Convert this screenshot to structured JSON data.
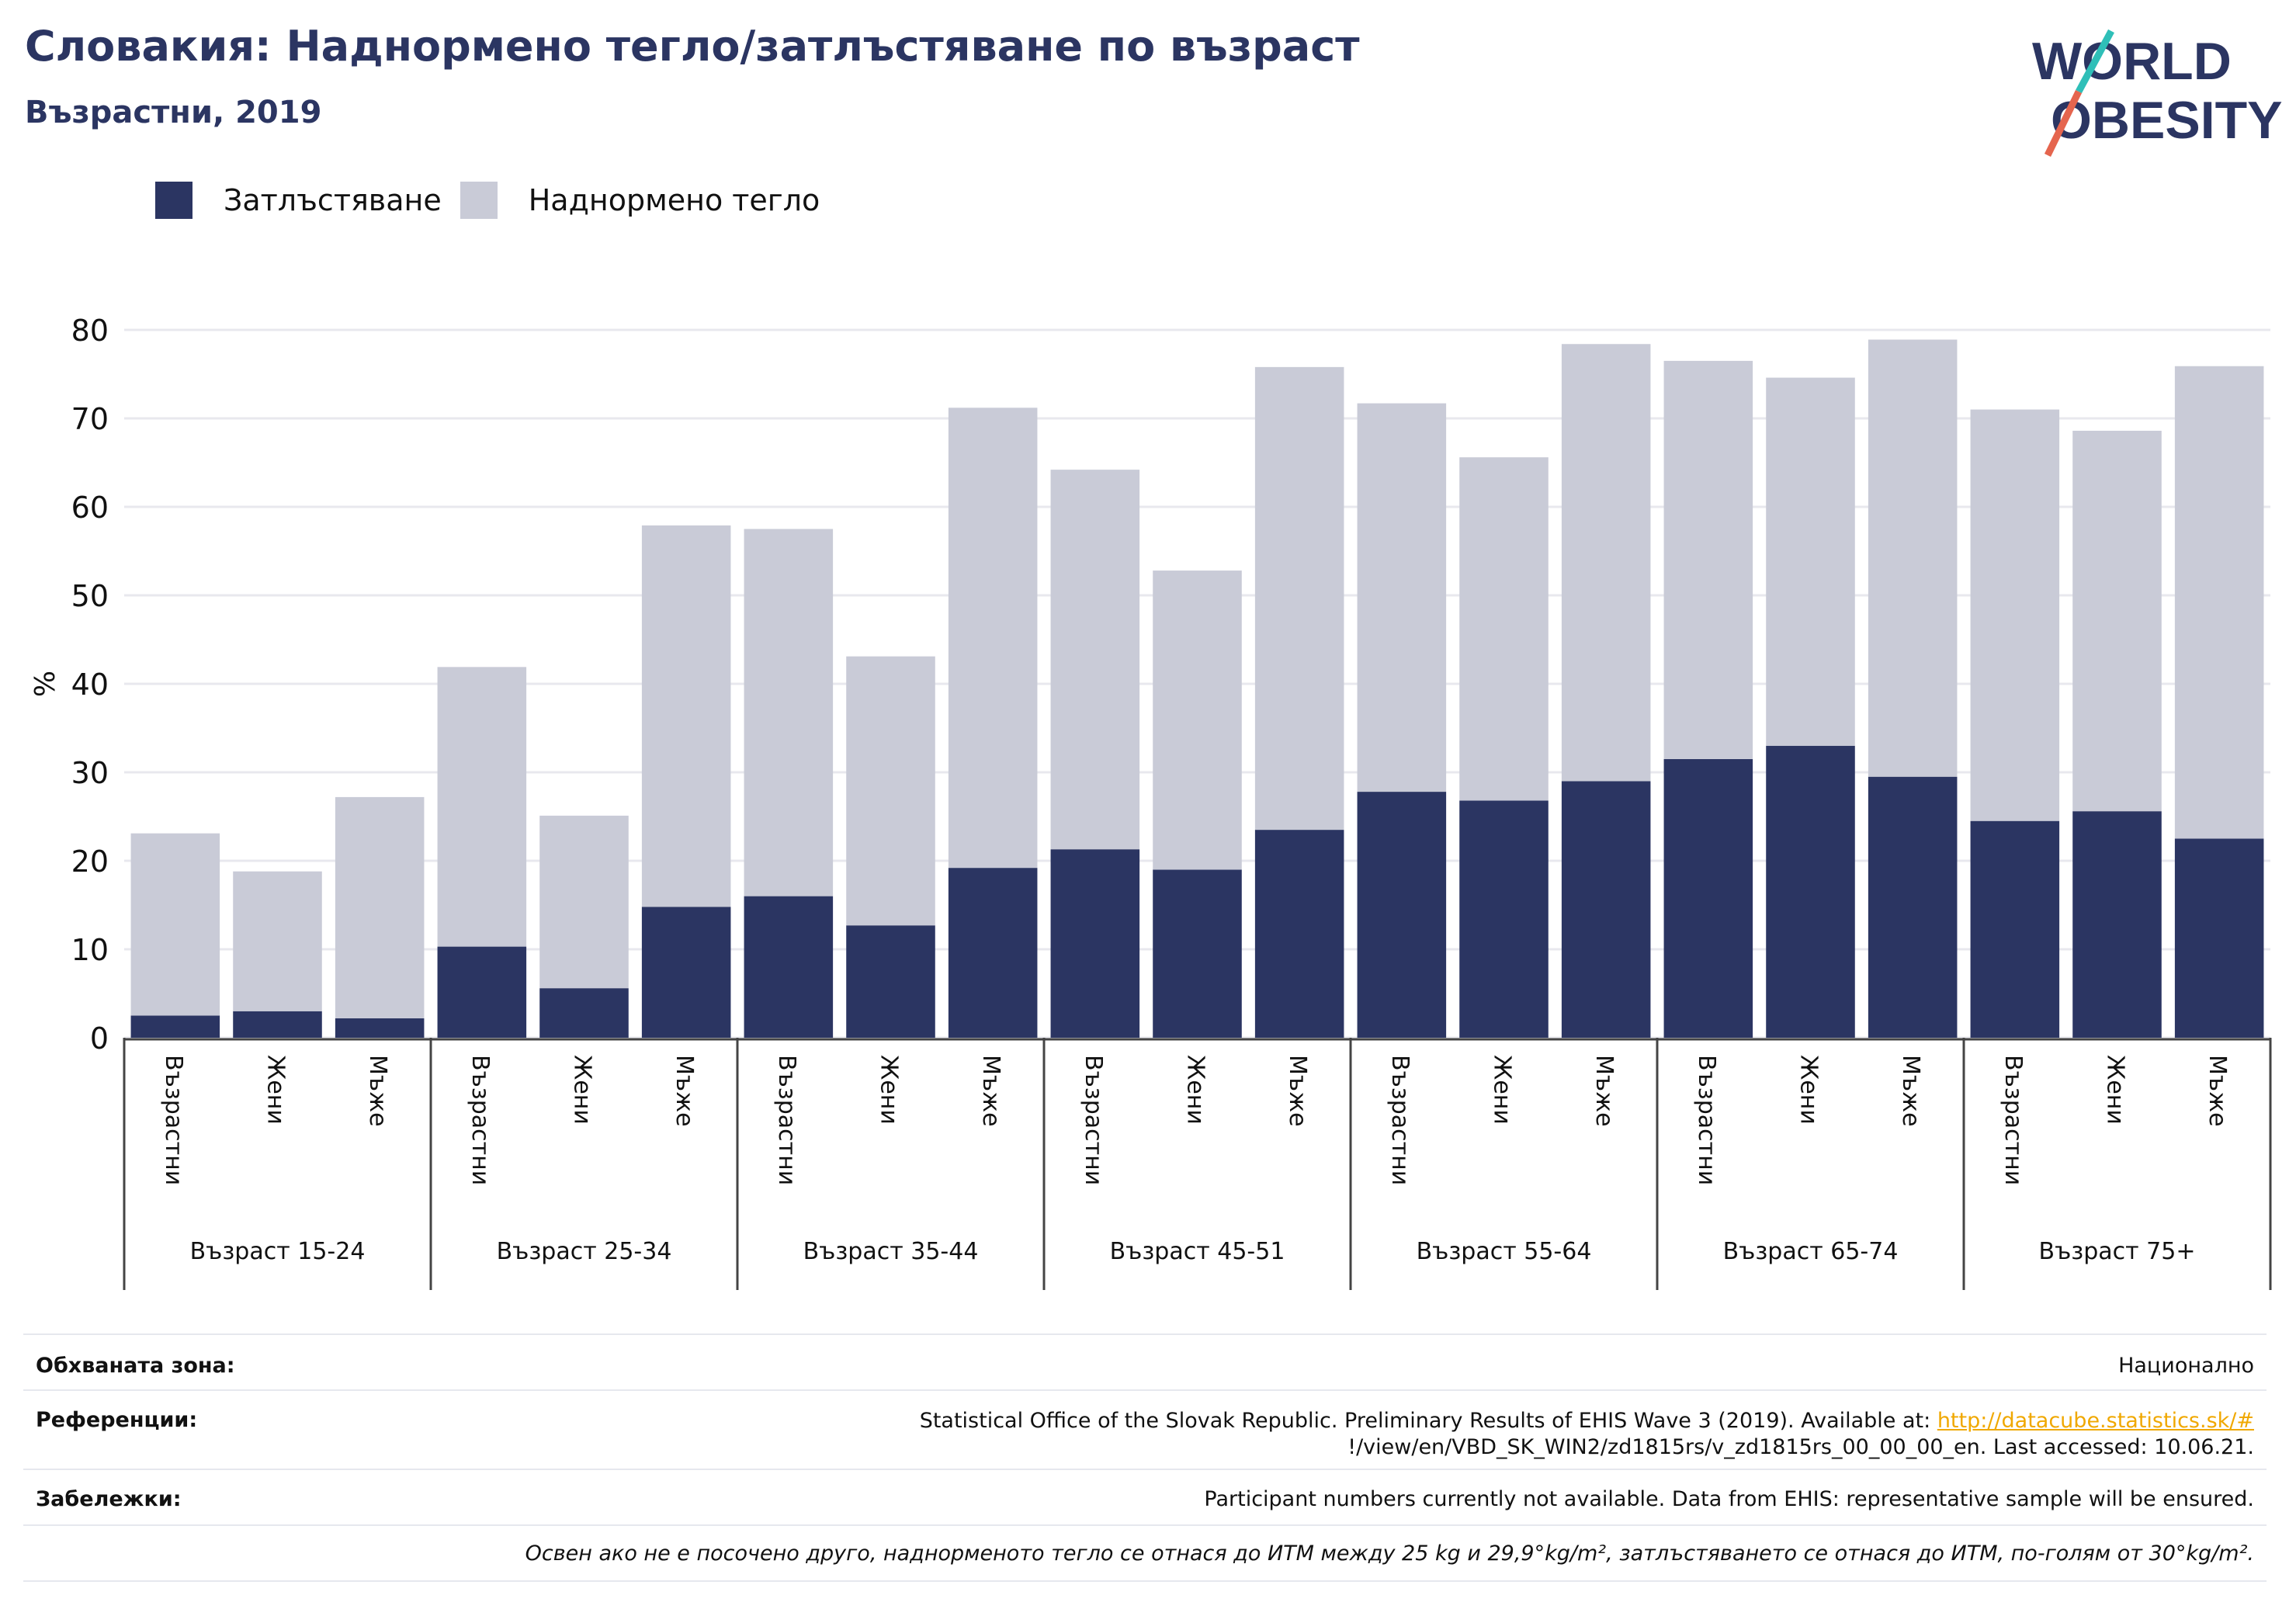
{
  "header": {
    "title": "Словакия: Наднормено тегло/затлъстяване по възраст",
    "subtitle": "Възрастни, 2019"
  },
  "logo": {
    "line1": "WORLD",
    "line2": "OBESITY"
  },
  "colors": {
    "obesity": "#2b3562",
    "overweight": "#c9cbd7",
    "title": "#2b3562",
    "link": "#f0a800"
  },
  "chart_data": {
    "type": "bar",
    "stacked": true,
    "ylabel": "%",
    "ylim": [
      0,
      80
    ],
    "yticks": [
      0,
      10,
      20,
      30,
      40,
      50,
      60,
      70,
      80
    ],
    "grid": true,
    "legend_position": "top-left",
    "groups": [
      "Възраст 15-24",
      "Възраст 25-34",
      "Възраст 35-44",
      "Възраст 45-51",
      "Възраст 55-64",
      "Възраст 65-74",
      "Възраст 75+"
    ],
    "subcategories": [
      "Възрастни",
      "Жени",
      "Мъже"
    ],
    "series": [
      {
        "name": "Затлъстяване",
        "values": [
          2.5,
          3.0,
          2.2,
          10.3,
          5.6,
          14.8,
          16.0,
          12.7,
          19.2,
          21.3,
          19.0,
          23.5,
          27.8,
          26.8,
          29.0,
          31.5,
          33.0,
          29.5,
          24.5,
          25.6,
          22.5
        ]
      },
      {
        "name": "Наднормено тегло",
        "values": [
          20.6,
          15.8,
          25.0,
          31.6,
          19.5,
          43.1,
          41.5,
          30.4,
          52.0,
          42.9,
          33.8,
          52.3,
          43.9,
          38.8,
          49.4,
          45.0,
          41.6,
          49.4,
          46.5,
          43.0,
          53.4
        ]
      }
    ]
  },
  "footer": {
    "coverage_label": "Обхваната зона:",
    "coverage_value": "Национално",
    "references_label": "Референции:",
    "references_text": "Statistical Office of the Slovak Republic. Preliminary Results of EHIS Wave 3 (2019). Available at: ",
    "references_link": "http://datacube.statistics.sk/#",
    "references_text2": "!/view/en/VBD_SK_WIN2/zd1815rs/v_zd1815rs_00_00_00_en. Last accessed: 10.06.21.",
    "notes_label": "Забележки:",
    "notes_value": "Participant numbers currently not available. Data from EHIS: representative sample will be ensured.",
    "definition": "Освен ако не е посочено друго, наднорменото тегло се отнася до ИТМ между 25 kg и 29,9°kg/m², затлъстяването се отнася до ИТМ, по-голям от 30°kg/m²."
  }
}
